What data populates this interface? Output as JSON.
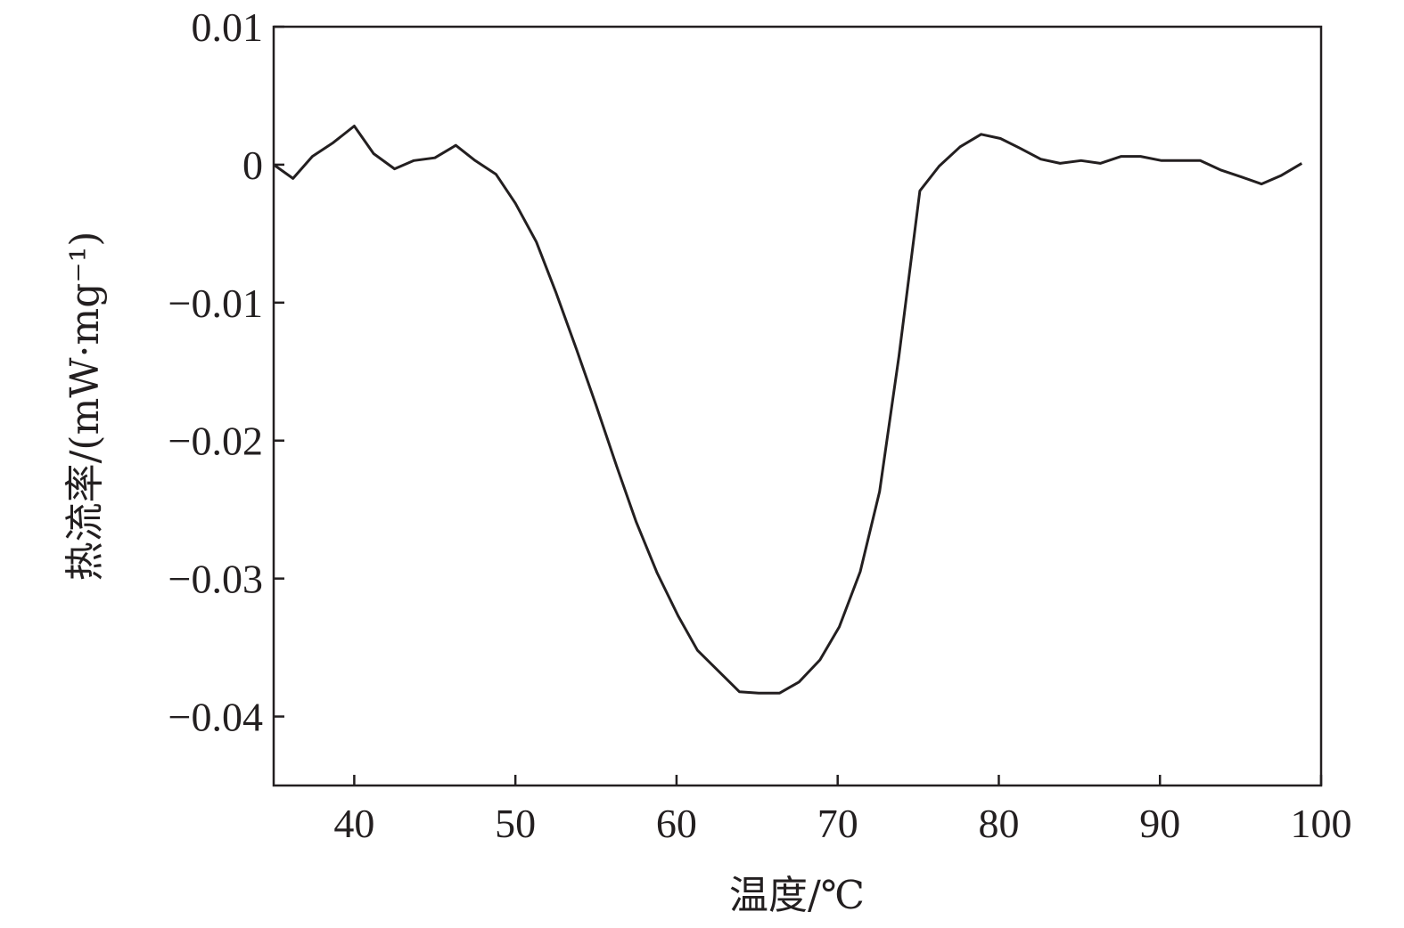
{
  "chart_data": {
    "type": "line",
    "title": "",
    "xlabel": "温度/℃",
    "ylabel": "热流率/(mW·mg⁻¹)",
    "xlim": [
      35,
      100
    ],
    "ylim": [
      -0.045,
      0.01
    ],
    "xticks": [
      40,
      50,
      60,
      70,
      80,
      90,
      100
    ],
    "xtick_labels": [
      "40",
      "50",
      "60",
      "70",
      "80",
      "90",
      "100"
    ],
    "yticks": [
      0.01,
      0,
      -0.01,
      -0.02,
      -0.03,
      -0.04
    ],
    "ytick_labels": [
      "0.01",
      "0",
      "−0.01",
      "−0.02",
      "−0.03",
      "−0.04"
    ],
    "grid": false,
    "line_color": "#231f20",
    "series": [
      {
        "x": [
          35,
          36.2,
          37.4,
          38.7,
          40,
          41.2,
          42.5,
          43.7,
          45,
          46.3,
          47.5,
          48.8,
          50,
          51.3,
          52.5,
          53.8,
          55,
          56.3,
          57.5,
          58.8,
          60.1,
          61.3,
          62.6,
          63.9,
          65.1,
          66.4,
          67.6,
          68.9,
          70.1,
          71.4,
          72.6,
          73.8,
          75.1,
          76.3,
          77.6,
          78.9,
          80.1,
          81.3,
          82.6,
          83.8,
          85.1,
          86.3,
          87.6,
          88.8,
          90.1,
          91.3,
          92.5,
          93.8,
          95.1,
          96.3,
          97.5,
          98.8
        ],
        "y": [
          0,
          -0.001,
          0.0006,
          0.0016,
          0.0028,
          0.0008,
          -0.0003,
          0.0003,
          0.0005,
          0.0014,
          0.0003,
          -0.0007,
          -0.0028,
          -0.0056,
          -0.0092,
          -0.0134,
          -0.0174,
          -0.0219,
          -0.0259,
          -0.0296,
          -0.0327,
          -0.0352,
          -0.0367,
          -0.0382,
          -0.0383,
          -0.0383,
          -0.0375,
          -0.0359,
          -0.0335,
          -0.0295,
          -0.0237,
          -0.0139,
          -0.0019,
          -0.0001,
          0.0013,
          0.0022,
          0.0019,
          0.0012,
          0.0004,
          0.0001,
          0.0003,
          0.0001,
          0.0006,
          0.0006,
          0.0003,
          0.0003,
          0.0003,
          -0.0004,
          -0.0009,
          -0.0014,
          -0.0008,
          0.0001
        ]
      }
    ]
  }
}
